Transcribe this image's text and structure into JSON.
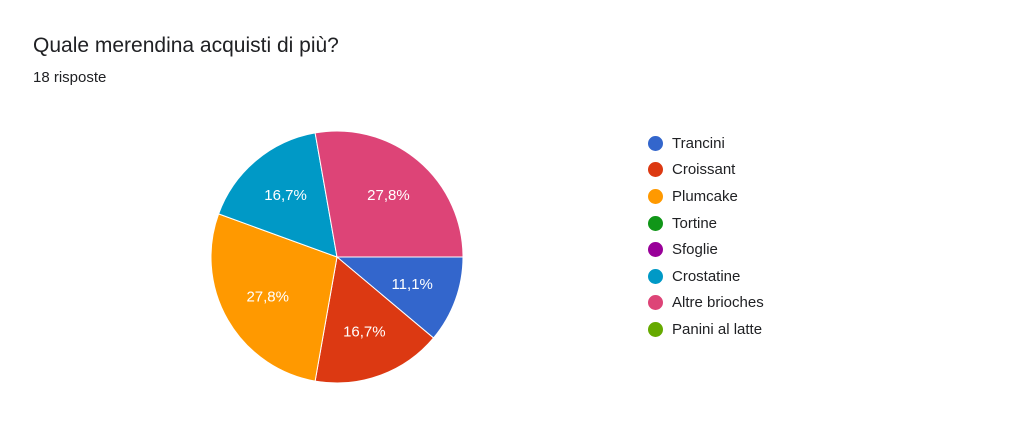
{
  "chart_data": {
    "type": "pie",
    "title": "Quale merendina acquisti di più?",
    "subtitle": "18 risposte",
    "categories": [
      "Trancini",
      "Croissant",
      "Plumcake",
      "Tortine",
      "Sfoglie",
      "Crostatine",
      "Altre brioches",
      "Panini al latte"
    ],
    "values": [
      2,
      3,
      5,
      0,
      0,
      3,
      5,
      0
    ],
    "labels": [
      "11,1%",
      "16,7%",
      "27,8%",
      "",
      "",
      "16,7%",
      "27,8%",
      ""
    ],
    "colors": [
      "#3366cc",
      "#dc3912",
      "#ff9900",
      "#109618",
      "#990099",
      "#0099c6",
      "#dd4477",
      "#66aa00"
    ],
    "legend_position": "right"
  }
}
